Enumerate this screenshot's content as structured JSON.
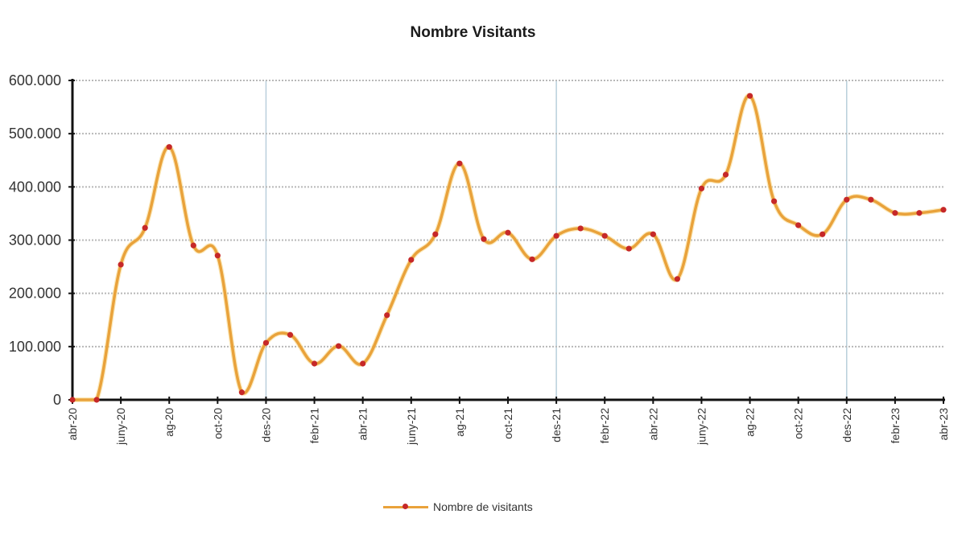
{
  "title": "Nombre Visitants",
  "legend": {
    "label": "Nombre de visitants"
  },
  "colors": {
    "line": "#E9A23B",
    "marker": "#C62828",
    "grid": "#b8b8b8",
    "vgrid": "#b9cfdc",
    "axis": "#111111"
  },
  "y_tick_labels_visible": [
    "0",
    "00.000",
    "00.000",
    "00.000",
    "00.000",
    "00.000",
    "00.000"
  ],
  "x_tick_labels": [
    "abr-20",
    "juny-20",
    "ag-20",
    "oct-20",
    "des-20",
    "febr-21",
    "abr-21",
    "juny-21",
    "ag-21",
    "oct-21",
    "des-21",
    "febr-22",
    "abr-22",
    "juny-22",
    "ag-22",
    "oct-22",
    "des-22",
    "febr-23",
    "abr-23"
  ],
  "chart_data": {
    "type": "line",
    "title": "Nombre Visitants",
    "xlabel": "",
    "ylabel": "",
    "legend": [
      "Nombre de visitants"
    ],
    "legend_position": "bottom",
    "grid": true,
    "ylim": [
      0,
      600000
    ],
    "y_ticks": [
      0,
      100000,
      200000,
      300000,
      400000,
      500000,
      600000
    ],
    "y_tick_labels": [
      "0",
      "100.000",
      "200.000",
      "300.000",
      "400.000",
      "500.000",
      "600.000"
    ],
    "y_tick_labels_note": "leading digit cropped at image edge; visible text is '00.000'",
    "x_tick_labels": [
      "abr-20",
      "juny-20",
      "ag-20",
      "oct-20",
      "des-20",
      "febr-21",
      "abr-21",
      "juny-21",
      "ag-21",
      "oct-21",
      "des-21",
      "febr-22",
      "abr-22",
      "juny-22",
      "ag-22",
      "oct-22",
      "des-22",
      "febr-23",
      "abr-23"
    ],
    "x": [
      "abr-20",
      "maig-20",
      "juny-20",
      "jul-20",
      "ag-20",
      "set-20",
      "oct-20",
      "nov-20",
      "des-20",
      "gen-21",
      "febr-21",
      "març-21",
      "abr-21",
      "maig-21",
      "juny-21",
      "jul-21",
      "ag-21",
      "set-21",
      "oct-21",
      "nov-21",
      "des-21",
      "gen-22",
      "febr-22",
      "març-22",
      "abr-22",
      "maig-22",
      "juny-22",
      "jul-22",
      "ag-22",
      "set-22",
      "oct-22",
      "nov-22",
      "des-22",
      "gen-23",
      "febr-23",
      "març-23",
      "abr-23"
    ],
    "series": [
      {
        "name": "Nombre de visitants",
        "values": [
          0,
          0,
          254000,
          323000,
          475000,
          290000,
          271000,
          14000,
          107000,
          122000,
          68000,
          101000,
          68000,
          159000,
          263000,
          311000,
          444000,
          302000,
          314000,
          264000,
          308000,
          322000,
          308000,
          284000,
          311000,
          227000,
          397000,
          423000,
          571000,
          373000,
          328000,
          311000,
          376000,
          376000,
          351000,
          351000,
          357000
        ]
      }
    ]
  }
}
